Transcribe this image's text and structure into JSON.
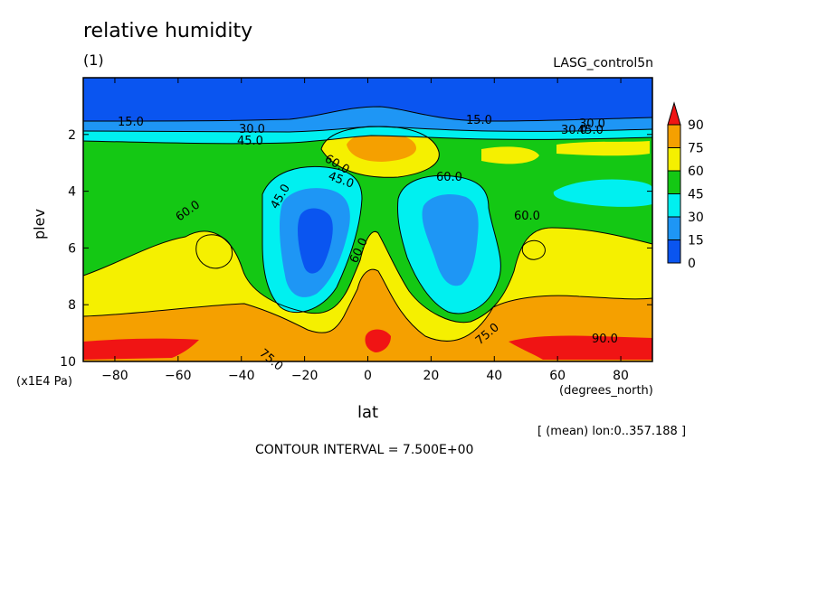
{
  "header": {
    "title": "relative humidity",
    "subtitle": "(1)",
    "run_name": "LASG_control5n"
  },
  "footer": {
    "y_unit": "(x1E4 Pa)",
    "x_unit": "(degrees_north)",
    "mean_info": "[ (mean) lon:0..357.188 ]",
    "contour_interval": "CONTOUR INTERVAL = 7.500E+00"
  },
  "chart_data": {
    "type": "heatmap",
    "title": "relative humidity",
    "xlabel": "lat",
    "ylabel": "plev",
    "xlim": [
      -90,
      90
    ],
    "ylim": [
      10,
      0
    ],
    "x_ticks": [
      -80,
      -60,
      -40,
      -20,
      0,
      20,
      40,
      60,
      80
    ],
    "y_ticks": [
      2,
      4,
      6,
      8,
      10
    ],
    "colorbar": {
      "levels": [
        0,
        15,
        30,
        45,
        60,
        75,
        90
      ],
      "colors": [
        "#0a55f0",
        "#1e96f5",
        "#00f0f0",
        "#14c814",
        "#f5f000",
        "#f5a000",
        "#f01414"
      ]
    },
    "contour_labels": [
      "15.0",
      "30.0",
      "45.0",
      "60.0",
      "45.0",
      "15.0",
      "30.0",
      "45.0",
      "60.0",
      "45.0",
      "30.0",
      "60.0",
      "60.0",
      "60.0",
      "75.0",
      "75.0",
      "90.0"
    ]
  }
}
